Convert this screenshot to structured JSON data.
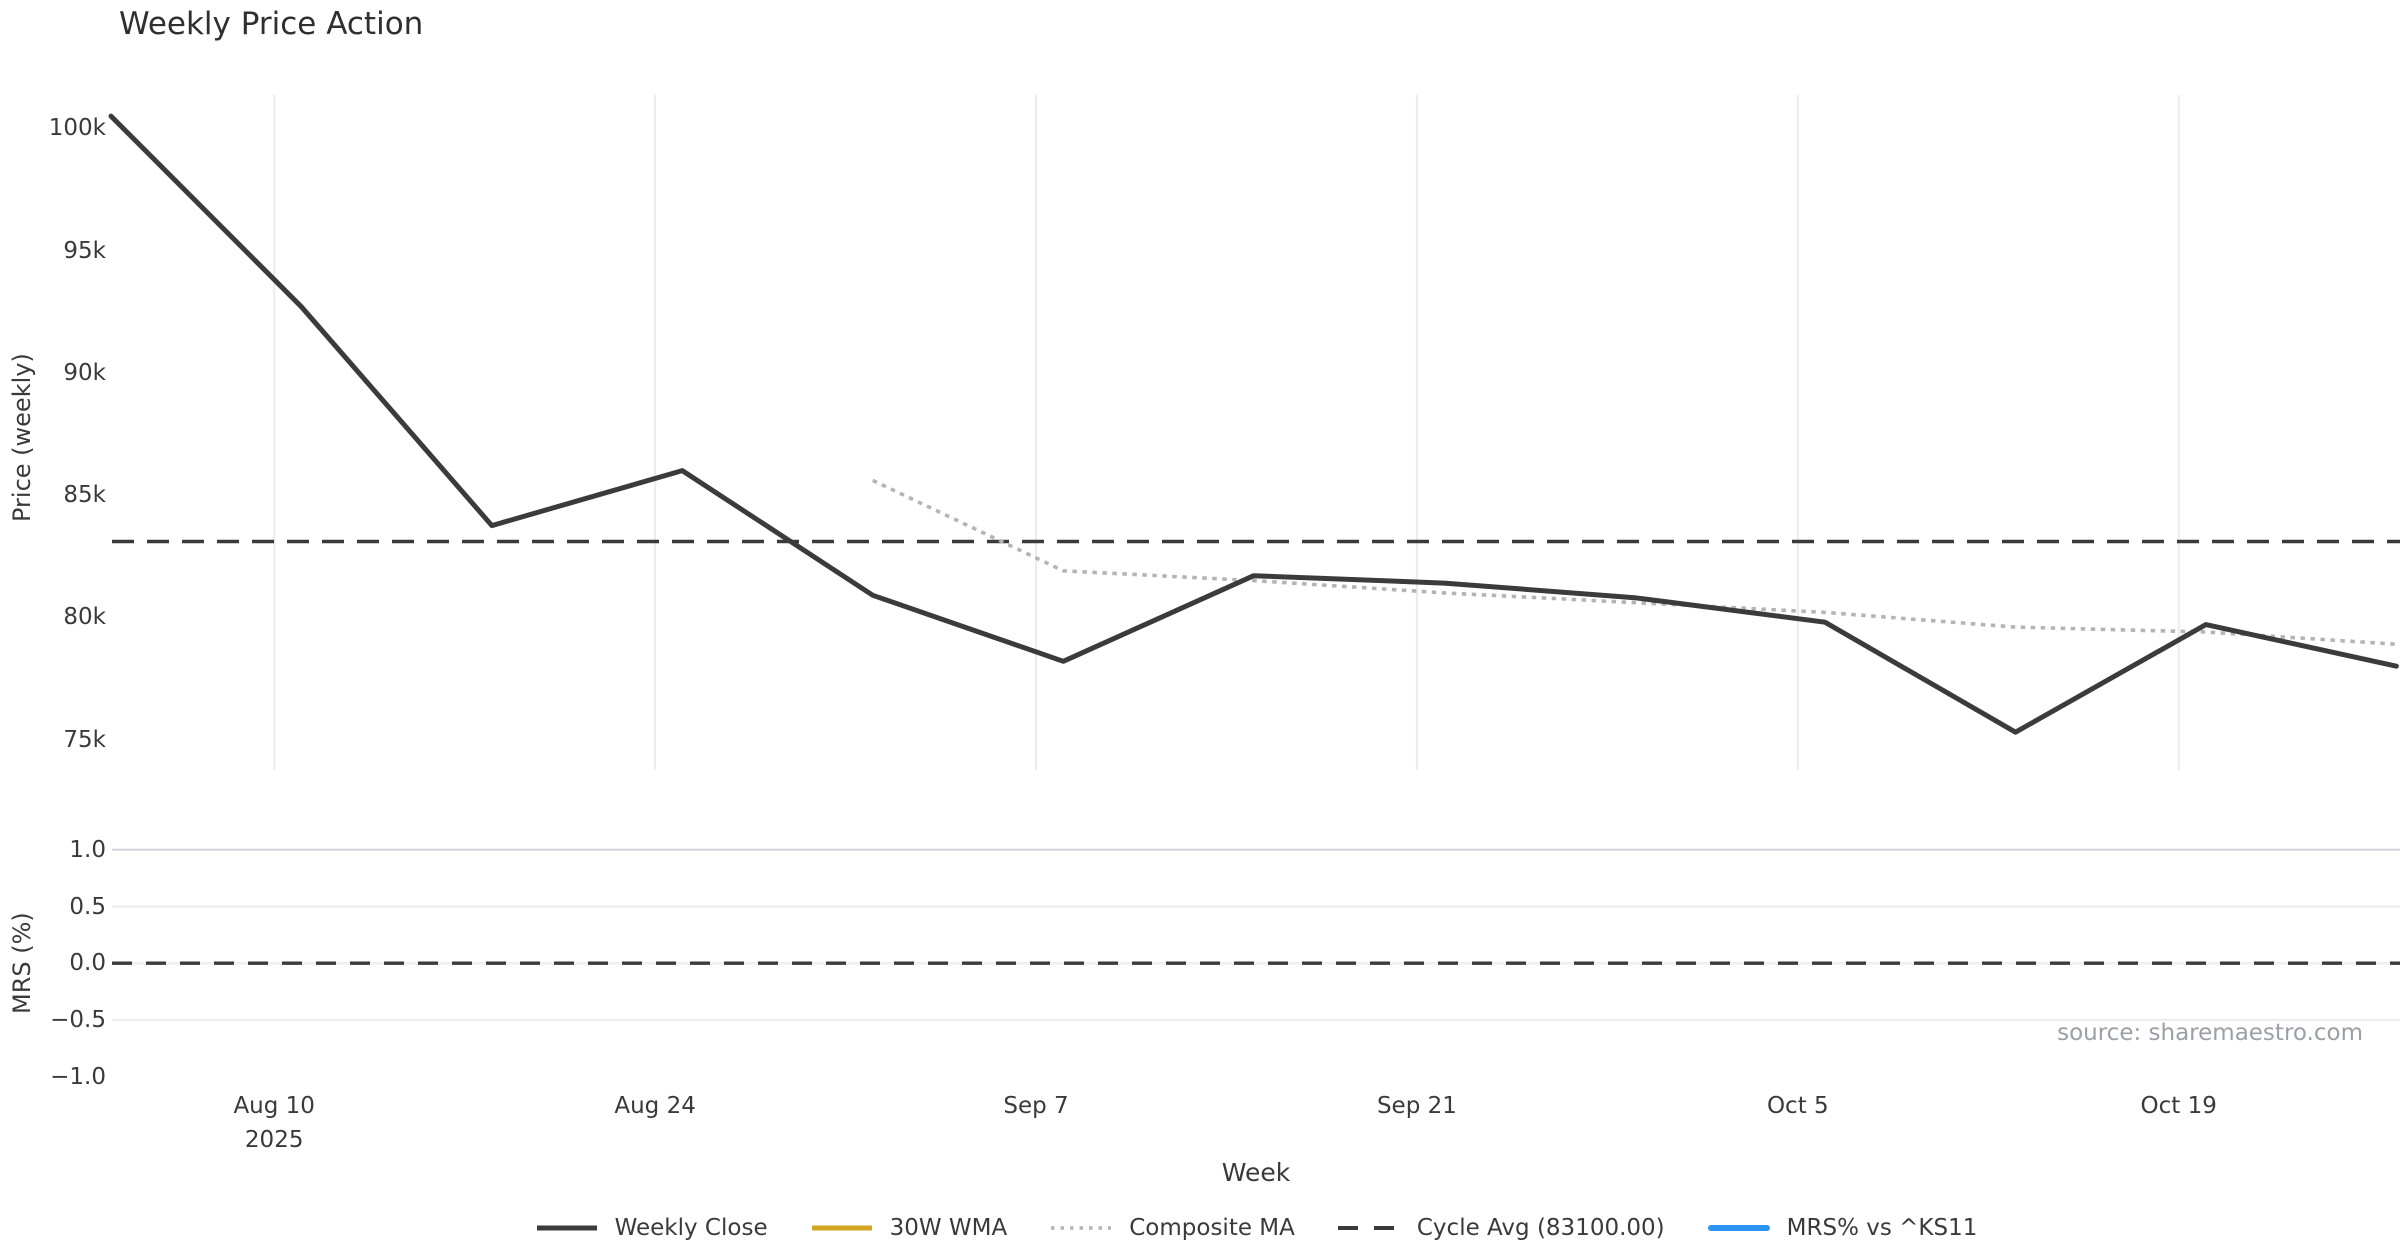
{
  "title": "Weekly Price Action",
  "source_note": "source: sharemaestro.com",
  "colors": {
    "weekly_close": "#3b3b3b",
    "wma_30w": "#d4a520",
    "composite_ma": "#b4b4b4",
    "cycle_avg": "#3a3a3a",
    "mrs_line": "#2b94f2",
    "grid_top": "#e7ebf7",
    "grid_bottom_light": "#ececec",
    "grid_bottom_strong": "#d2d5d9",
    "zero_grid_under": "#eef0f2",
    "text": "#3a3a3a",
    "muted_text": "#9aa0a6"
  },
  "legend": [
    {
      "label": "Weekly Close"
    },
    {
      "label": "30W WMA"
    },
    {
      "label": "Composite MA"
    },
    {
      "label": "Cycle Avg (83100.00)"
    },
    {
      "label": "MRS% vs ^KS11"
    }
  ],
  "chart_data": [
    {
      "type": "line",
      "panel": "price",
      "ylabel": "Price (weekly)",
      "x": [
        "Aug 4 2025",
        "Aug 11",
        "Aug 18",
        "Aug 25",
        "Sep 1",
        "Sep 8",
        "Sep 15",
        "Sep 22",
        "Sep 29",
        "Oct 6",
        "Oct 13",
        "Oct 20",
        "Oct 27"
      ],
      "series": [
        {
          "name": "Weekly Close",
          "style": "solid-dark",
          "values": [
            100500,
            92700,
            83750,
            86000,
            80900,
            78200,
            81700,
            81400,
            80800,
            79800,
            75300,
            79700,
            78000
          ]
        },
        {
          "name": "30W WMA",
          "style": "solid-gold",
          "visible_in_plot": false,
          "values": [
            null,
            null,
            null,
            null,
            null,
            null,
            null,
            null,
            null,
            null,
            null,
            null,
            null
          ]
        },
        {
          "name": "Composite MA",
          "style": "dotted-gray",
          "values": [
            null,
            null,
            null,
            null,
            85600,
            81900,
            81500,
            81000,
            80600,
            80200,
            79600,
            79400,
            78900
          ]
        },
        {
          "name": "Cycle Avg",
          "style": "dashed-dark",
          "constant": 83100
        }
      ],
      "yticks": [
        {
          "label": "100k",
          "value": 100000
        },
        {
          "label": "95k",
          "value": 95000
        },
        {
          "label": "90k",
          "value": 90000
        },
        {
          "label": "85k",
          "value": 85000
        },
        {
          "label": "80k",
          "value": 80000
        },
        {
          "label": "75k",
          "value": 75000
        }
      ],
      "xticks": [
        {
          "label": "Aug 10",
          "sub": "2025",
          "week_offset": 0.857
        },
        {
          "label": "Aug 24",
          "week_offset": 2.857
        },
        {
          "label": "Sep 7",
          "week_offset": 4.857
        },
        {
          "label": "Sep 21",
          "week_offset": 6.857
        },
        {
          "label": "Oct 5",
          "week_offset": 8.857
        },
        {
          "label": "Oct 19",
          "week_offset": 10.857
        }
      ],
      "ylim": [
        73800,
        101400
      ],
      "grid": "vertical-only",
      "legend_position": "bottom-center"
    },
    {
      "type": "line",
      "panel": "mrs",
      "ylabel": "MRS (%)",
      "xlabel": "Week",
      "series": [
        {
          "name": "MRS% vs ^KS11",
          "style": "solid-blue",
          "visible_in_plot": false,
          "values": []
        },
        {
          "name": "Zero line",
          "style": "dashed-dark",
          "constant": 0
        }
      ],
      "yticks": [
        {
          "label": "1.0",
          "value": 1.0,
          "grid": "strong"
        },
        {
          "label": "0.5",
          "value": 0.5,
          "grid": "light"
        },
        {
          "label": "0.0",
          "value": 0.0,
          "grid": "dashed"
        },
        {
          "label": "−0.5",
          "value": -0.5,
          "grid": "light"
        },
        {
          "label": "−1.0",
          "value": -1.0,
          "grid": "none"
        }
      ],
      "ylim": [
        -1.15,
        1.15
      ],
      "grid": "horizontal-only"
    }
  ]
}
